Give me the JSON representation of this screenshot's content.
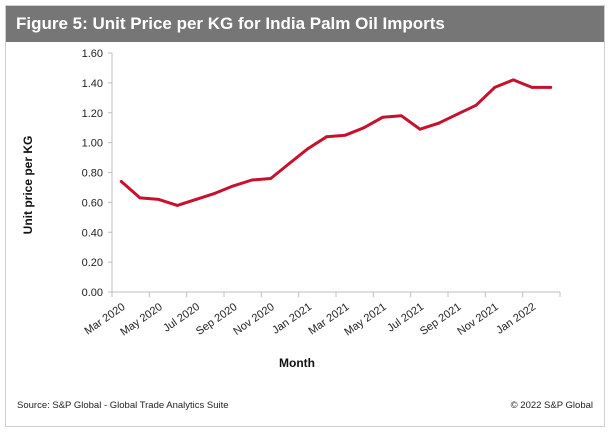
{
  "header": {
    "title": "Figure 5: Unit Price per KG for India Palm Oil Imports"
  },
  "footer": {
    "source": "Source: S&P Global - Global Trade Analytics Suite",
    "copyright": "© 2022 S&P Global"
  },
  "colors": {
    "line": "#c8102e",
    "title_bar": "#767676",
    "axis": "#bfbfbf"
  },
  "chart_data": {
    "type": "line",
    "title": "",
    "xlabel": "Month",
    "ylabel": "Unit price per KG",
    "ylim": [
      0,
      1.6
    ],
    "yticks": [
      "0.00",
      "0.20",
      "0.40",
      "0.60",
      "0.80",
      "1.00",
      "1.20",
      "1.40",
      "1.60"
    ],
    "x": [
      "Mar 2020",
      "Apr 2020",
      "May 2020",
      "Jun 2020",
      "Jul 2020",
      "Aug 2020",
      "Sep 2020",
      "Oct 2020",
      "Nov 2020",
      "Dec 2020",
      "Jan 2021",
      "Feb 2021",
      "Mar 2021",
      "Apr 2021",
      "May 2021",
      "Jun 2021",
      "Jul 2021",
      "Aug 2021",
      "Sep 2021",
      "Oct 2021",
      "Nov 2021",
      "Dec 2021",
      "Jan 2022",
      "Feb 2022"
    ],
    "xtick_labels": [
      "Mar 2020",
      "May 2020",
      "Jul 2020",
      "Sep 2020",
      "Nov 2020",
      "Jan 2021",
      "Mar 2021",
      "May 2021",
      "Jul 2021",
      "Sep 2021",
      "Nov 2021",
      "Jan 2022"
    ],
    "series": [
      {
        "values": [
          0.74,
          0.63,
          0.62,
          0.58,
          0.62,
          0.66,
          0.71,
          0.75,
          0.76,
          0.86,
          0.96,
          1.04,
          1.05,
          1.1,
          1.17,
          1.18,
          1.09,
          1.13,
          1.19,
          1.25,
          1.37,
          1.42,
          1.37,
          1.37
        ]
      }
    ],
    "grid": false,
    "legend": "none"
  }
}
